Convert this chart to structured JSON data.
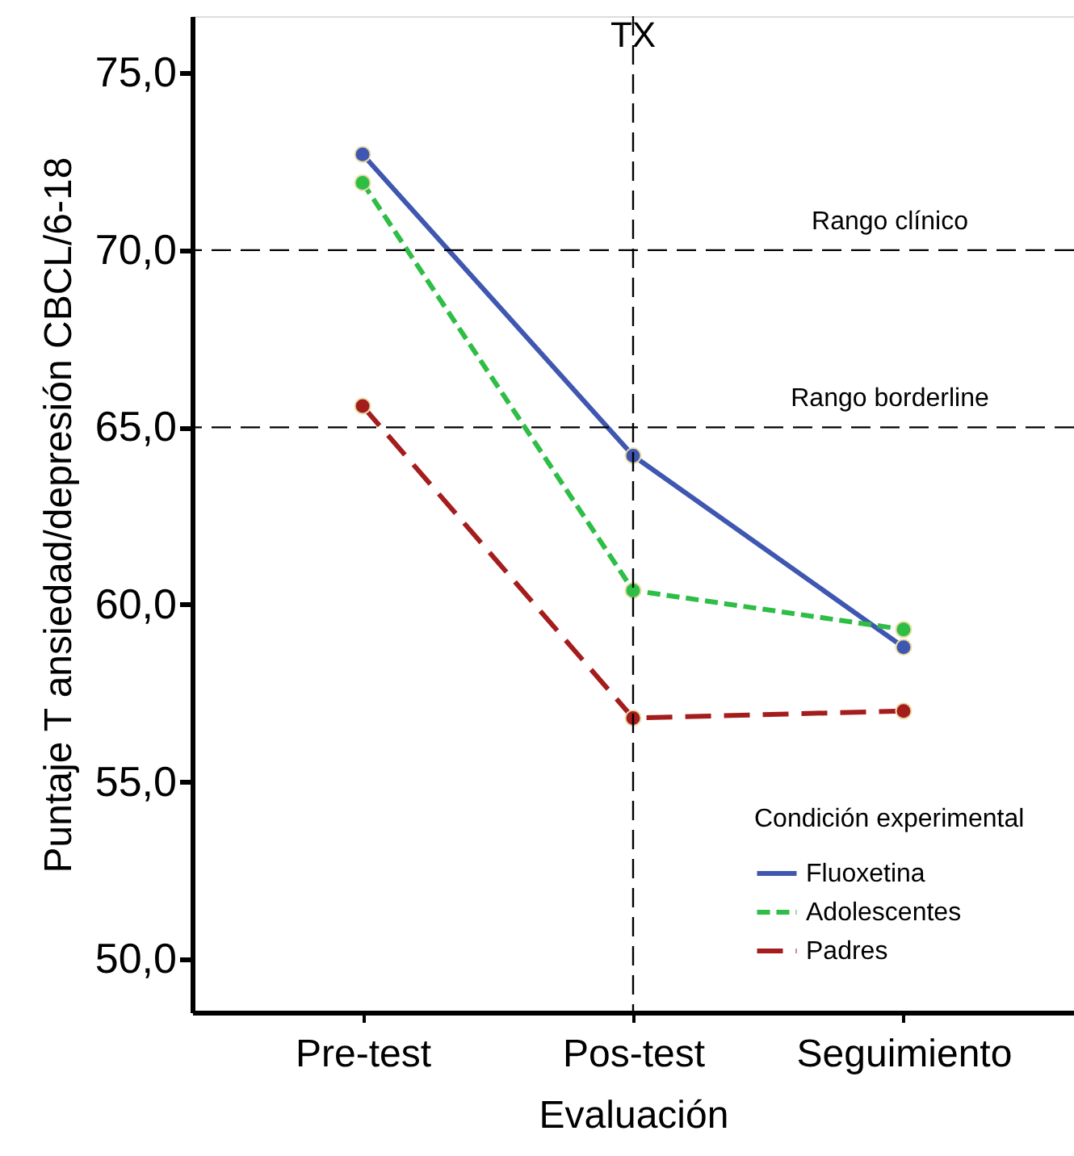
{
  "chart_data": {
    "type": "line",
    "xlabel": "Evaluación",
    "ylabel": "Puntaje T ansiedad/depresión CBCL/6-18",
    "legend_title": "Condición experimental",
    "categories": [
      "Pre-test",
      "Pos-test",
      "Seguimiento"
    ],
    "series": [
      {
        "name": "Fluoxetina",
        "color": "#3f57b0",
        "line_style": "solid",
        "values": [
          72.7,
          64.2,
          58.8
        ]
      },
      {
        "name": "Adolescentes",
        "color": "#2ebd45",
        "line_style": "dashed",
        "values": [
          71.9,
          60.4,
          59.3
        ]
      },
      {
        "name": "Padres",
        "color": "#a51c1c",
        "line_style": "dashed",
        "values": [
          65.6,
          56.8,
          57.0
        ]
      }
    ],
    "ylim": [
      48.5,
      76.6
    ],
    "yticks": [
      {
        "value": 50,
        "label": "50,0"
      },
      {
        "value": 55,
        "label": "55,0"
      },
      {
        "value": 60,
        "label": "60,0"
      },
      {
        "value": 65,
        "label": "65,0"
      },
      {
        "value": 70,
        "label": "70,0"
      },
      {
        "value": 75,
        "label": "75,0"
      }
    ],
    "ref_lines": [
      {
        "axis": "y",
        "value": 70,
        "label": "Rango clínico",
        "color": "#000000",
        "line_style": "dashed"
      },
      {
        "axis": "y",
        "value": 65,
        "label": "Rango borderline",
        "color": "#000000",
        "line_style": "dashed"
      },
      {
        "axis": "x",
        "value": "Pos-test",
        "label": "TX",
        "color": "#000000",
        "line_style": "dashed"
      }
    ],
    "marker": "circle",
    "grid": false,
    "legend": "bottom right"
  }
}
